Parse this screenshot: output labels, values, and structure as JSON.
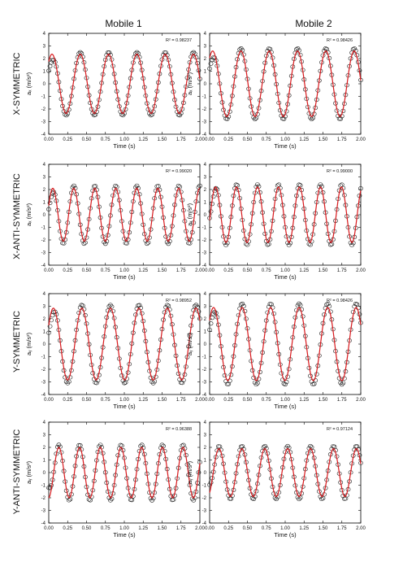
{
  "figure": {
    "columns": [
      "Mobile 1",
      "Mobile 2"
    ],
    "rows": [
      "X-SYMMETRIC",
      "X-ANTI-SYMMETRIC",
      "Y-SYMMETRIC",
      "Y-ANTI-SYMMETRIC"
    ],
    "colors": {
      "fit": "#d8181c",
      "data": "#222222",
      "axis": "#000000",
      "background": "#ffffff"
    }
  },
  "chart_data": [
    {
      "type": "scatter",
      "row": "X-SYMMETRIC",
      "column": "Mobile 1",
      "r2": "R² = 0.98237",
      "xlabel": "Time (s)",
      "ylabel": "aₓ (m/s²)",
      "xlim": [
        0,
        2
      ],
      "ylim": [
        -4,
        4
      ],
      "xticks": [
        "0.00",
        "0.25",
        "0.50",
        "0.75",
        "1.00",
        "1.25",
        "1.50",
        "1.75",
        "2.00"
      ],
      "yticks": [
        "4",
        "3",
        "2",
        "1",
        "0",
        "-1",
        "-2",
        "-3",
        "-4"
      ],
      "fit": {
        "amplitude": 2.35,
        "frequency_hz": 2.67,
        "phase": 0.85
      },
      "data_amplitude": 2.5,
      "series": [
        "data",
        "fit"
      ]
    },
    {
      "type": "scatter",
      "row": "X-SYMMETRIC",
      "column": "Mobile 2",
      "r2": "R² = 0.98426",
      "xlabel": "Time (s)",
      "ylabel": "aₓ (m/s²)",
      "xlim": [
        0,
        2
      ],
      "ylim": [
        -4,
        4
      ],
      "xticks": [
        "0.00",
        "0.25",
        "0.50",
        "0.75",
        "1.00",
        "1.25",
        "1.50",
        "1.75",
        "2.00"
      ],
      "yticks": [
        "4",
        "3",
        "2",
        "1",
        "0",
        "-1",
        "-2",
        "-3",
        "-4"
      ],
      "fit": {
        "amplitude": 2.6,
        "frequency_hz": 2.67,
        "phase": 0.9
      },
      "data_amplitude": 2.8,
      "series": [
        "data",
        "fit"
      ]
    },
    {
      "type": "scatter",
      "row": "X-ANTI-SYMMETRIC",
      "column": "Mobile 1",
      "r2": "R² = 0.99020",
      "xlabel": "Time (s)",
      "ylabel": "aₓ (m/s²)",
      "xlim": [
        0,
        2
      ],
      "ylim": [
        -4,
        4
      ],
      "xticks": [
        "0.00",
        "0.25",
        "0.50",
        "0.75",
        "1.00",
        "1.25",
        "1.50",
        "1.75",
        "2.00"
      ],
      "yticks": [
        "4",
        "3",
        "2",
        "1",
        "0",
        "-1",
        "-2",
        "-3",
        "-4"
      ],
      "fit": {
        "amplitude": 2.1,
        "frequency_hz": 3.6,
        "phase": 0.35
      },
      "data_amplitude": 2.3,
      "series": [
        "data",
        "fit"
      ]
    },
    {
      "type": "scatter",
      "row": "X-ANTI-SYMMETRIC",
      "column": "Mobile 2",
      "r2": "R² = 0.99000",
      "xlabel": "Time (s)",
      "ylabel": "aₓ (m/s²)",
      "xlim": [
        0,
        2
      ],
      "ylim": [
        -4,
        4
      ],
      "xticks": [
        "0.00",
        "0.25",
        "0.50",
        "0.75",
        "1.00",
        "1.25",
        "1.50",
        "1.75",
        "2.00"
      ],
      "yticks": [
        "4",
        "3",
        "2",
        "1",
        "0",
        "-1",
        "-2",
        "-3",
        "-4"
      ],
      "fit": {
        "amplitude": 2.2,
        "frequency_hz": 3.6,
        "phase": -0.2
      },
      "data_amplitude": 2.4,
      "series": [
        "data",
        "fit"
      ]
    },
    {
      "type": "scatter",
      "row": "Y-SYMMETRIC",
      "column": "Mobile 1",
      "r2": "R² = 0.98952",
      "xlabel": "Time (s)",
      "ylabel": "aᵧ (m/s²)",
      "xlim": [
        0,
        2
      ],
      "ylim": [
        -4,
        4
      ],
      "xticks": [
        "0.00",
        "0.25",
        "0.50",
        "0.75",
        "1.00",
        "1.25",
        "1.50",
        "1.75",
        "2.00"
      ],
      "yticks": [
        "4",
        "3",
        "2",
        "1",
        "0",
        "-1",
        "-2",
        "-3",
        "-4"
      ],
      "fit": {
        "amplitude": 2.85,
        "frequency_hz": 2.65,
        "phase": 0.55
      },
      "data_amplitude": 3.1,
      "series": [
        "data",
        "fit"
      ]
    },
    {
      "type": "scatter",
      "row": "Y-SYMMETRIC",
      "column": "Mobile 2",
      "r2": "R² = 0.98426",
      "xlabel": "Time (s)",
      "ylabel": "aᵧ (m/s²)",
      "xlim": [
        0,
        2
      ],
      "ylim": [
        -4,
        4
      ],
      "xticks": [
        "0.00",
        "0.25",
        "0.50",
        "0.75",
        "1.00",
        "1.25",
        "1.50",
        "1.75",
        "2.00"
      ],
      "yticks": [
        "4",
        "3",
        "2",
        "1",
        "0",
        "-1",
        "-2",
        "-3",
        "-4"
      ],
      "fit": {
        "amplitude": 2.9,
        "frequency_hz": 2.65,
        "phase": 0.7
      },
      "data_amplitude": 3.2,
      "series": [
        "data",
        "fit"
      ]
    },
    {
      "type": "scatter",
      "row": "Y-ANTI-SYMMETRIC",
      "column": "Mobile 1",
      "r2": "R² = 0.96388",
      "xlabel": "Time (s)",
      "ylabel": "aᵧ (m/s²)",
      "xlim": [
        0,
        2
      ],
      "ylim": [
        -4,
        4
      ],
      "xticks": [
        "0.00",
        "0.25",
        "0.50",
        "0.75",
        "1.00",
        "1.25",
        "1.50",
        "1.75",
        "2.00"
      ],
      "yticks": [
        "4",
        "3",
        "2",
        "1",
        "0",
        "-1",
        "-2",
        "-3",
        "-4"
      ],
      "fit": {
        "amplitude": 2.0,
        "frequency_hz": 3.65,
        "phase": -1.5
      },
      "data_amplitude": 2.2,
      "series": [
        "data",
        "fit"
      ]
    },
    {
      "type": "scatter",
      "row": "Y-ANTI-SYMMETRIC",
      "column": "Mobile 2",
      "r2": "R² = 0.97124",
      "xlabel": "Time (s)",
      "ylabel": "aᵧ (m/s²)",
      "xlim": [
        0,
        2
      ],
      "ylim": [
        -4,
        4
      ],
      "xticks": [
        "0.00",
        "0.25",
        "0.50",
        "0.75",
        "1.00",
        "1.25",
        "1.50",
        "1.75",
        "2.00"
      ],
      "yticks": [
        "4",
        "3",
        "2",
        "1",
        "0",
        "-1",
        "-2",
        "-3",
        "-4"
      ],
      "fit": {
        "amplitude": 1.9,
        "frequency_hz": 3.3,
        "phase": -1.0
      },
      "data_amplitude": 2.1,
      "series": [
        "data",
        "fit"
      ]
    }
  ]
}
